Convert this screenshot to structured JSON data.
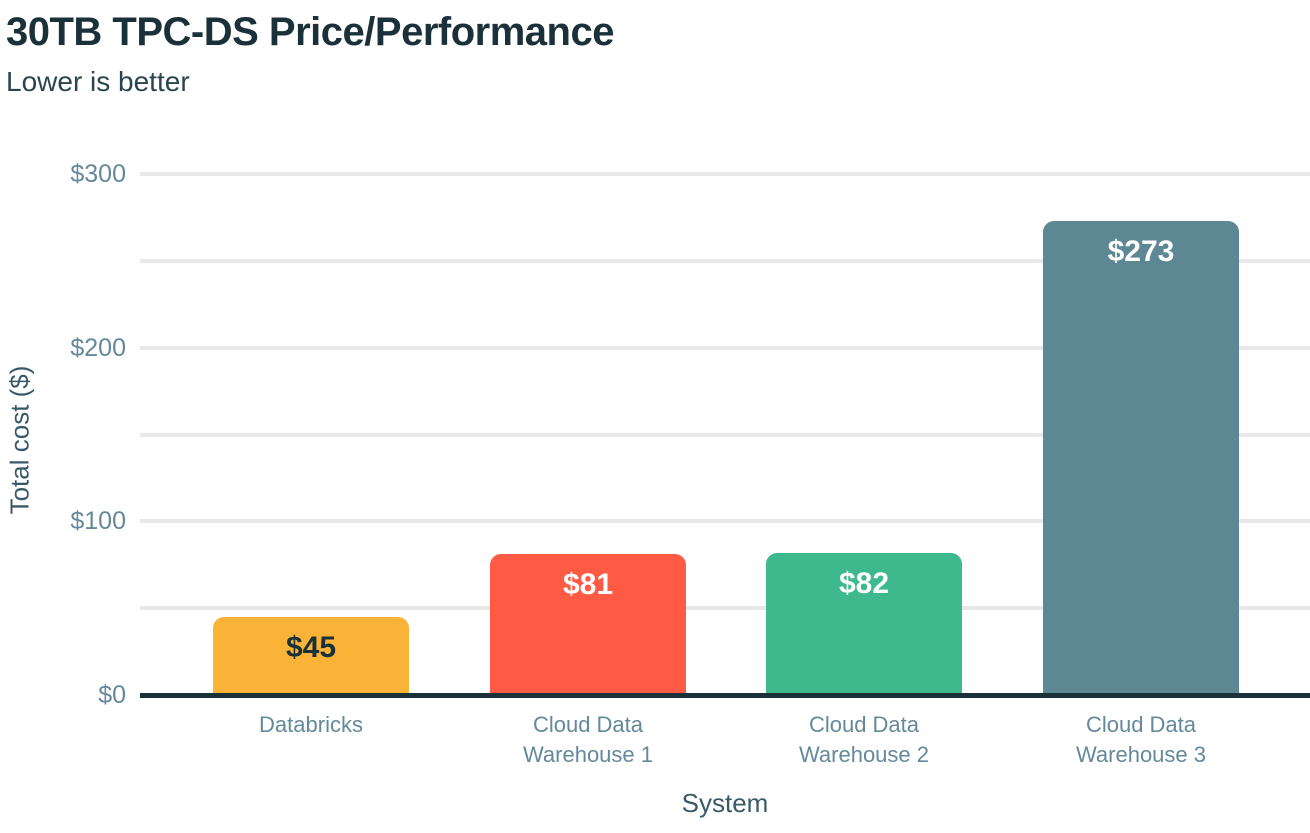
{
  "chart_data": {
    "type": "bar",
    "title": "30TB TPC-DS Price/Performance",
    "subtitle": "Lower is better",
    "xlabel": "System",
    "ylabel": "Total cost ($)",
    "ylim": [
      0,
      300
    ],
    "grid": "horizontal gridlines every $50, light gray, behind bars",
    "legend_position": "none",
    "yticks": [
      {
        "value": 0,
        "label": "$0"
      },
      {
        "value": 100,
        "label": "$100"
      },
      {
        "value": 200,
        "label": "$200"
      },
      {
        "value": 300,
        "label": "$300"
      }
    ],
    "gridline_interval": 50,
    "categories": [
      "Databricks",
      "Cloud Data\nWarehouse 1",
      "Cloud Data\nWarehouse 2",
      "Cloud Data\nWarehouse 3"
    ],
    "values": [
      45,
      81,
      82,
      273
    ],
    "value_labels": [
      "$45",
      "$81",
      "$82",
      "$273"
    ],
    "bar_colors": [
      "#FAB337",
      "#FF5B44",
      "#3EB88D",
      "#5E8794"
    ],
    "value_label_colors": [
      "#1B3139",
      "#FFFFFF",
      "#FFFFFF",
      "#FFFFFF"
    ]
  },
  "colors": {
    "title": "#1B3139",
    "subtitle": "#2B4550",
    "tick_label": "#64899B",
    "axis_title": "#3A5968",
    "gridline": "#E8E8E8",
    "axis_line": "#1B3139",
    "background": "#FFFFFF"
  }
}
